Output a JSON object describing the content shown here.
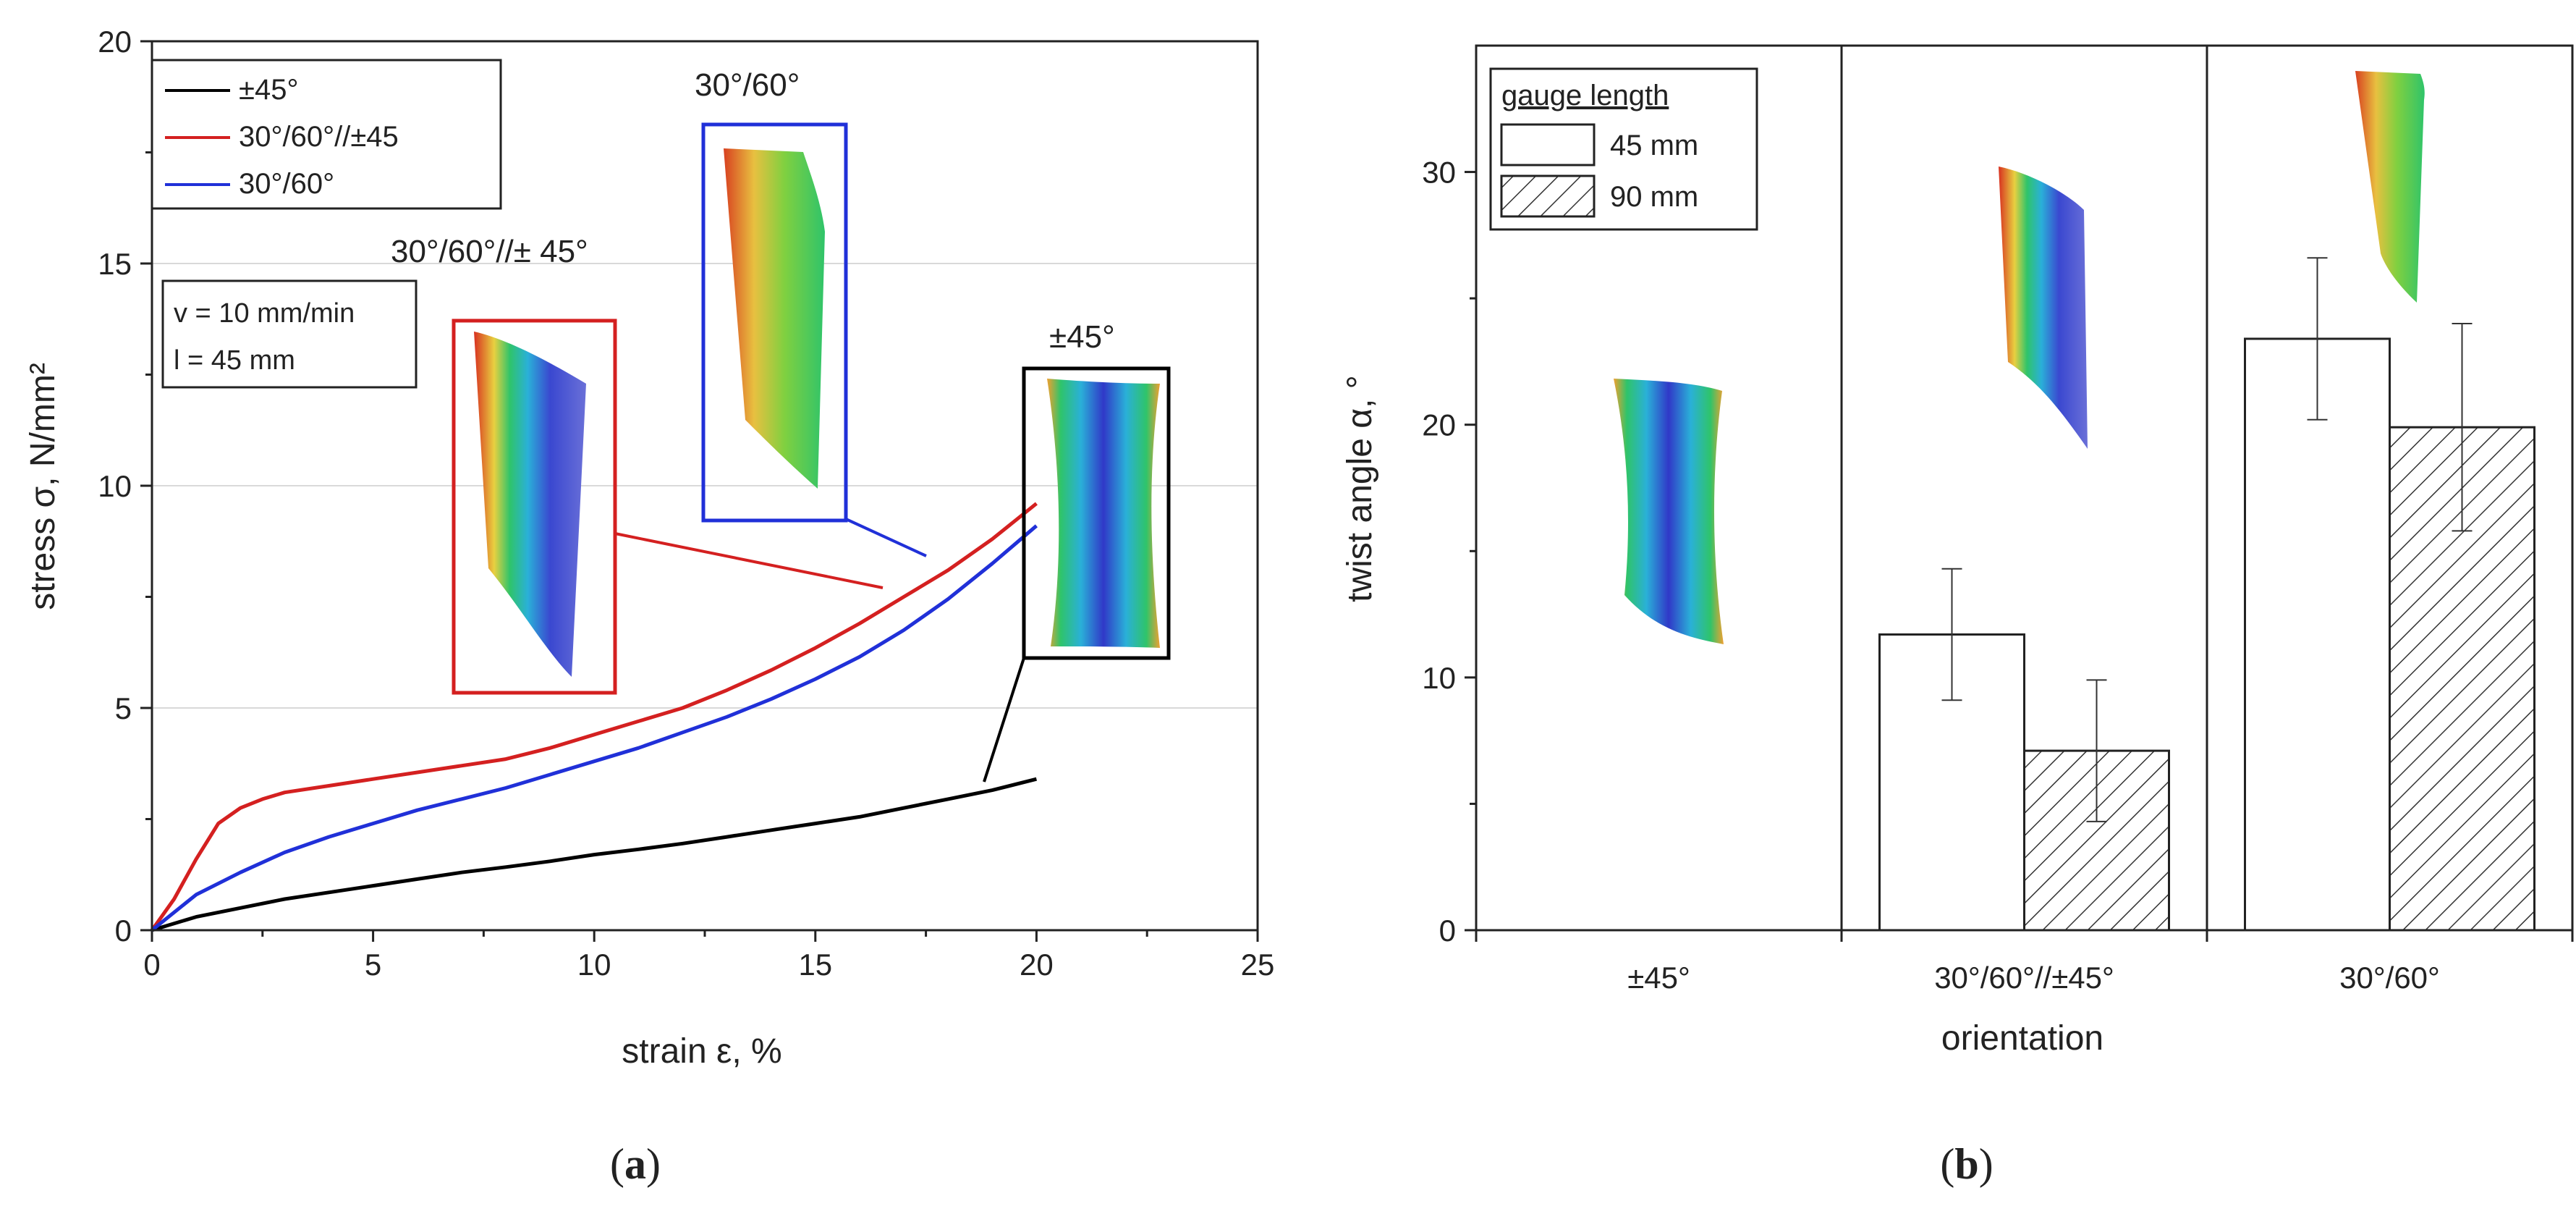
{
  "colors": {
    "black": "#000000",
    "red": "#d42020",
    "blue": "#2030d8",
    "grid": "#d9d9d9",
    "axis": "#222222",
    "frame": "#222222"
  },
  "panels": {
    "a": {
      "open": "(",
      "letter": "a",
      "close": ")"
    },
    "b": {
      "open": "(",
      "letter": "b",
      "close": ")"
    }
  },
  "chart_data": [
    {
      "id": "a",
      "type": "line",
      "title": "",
      "xlabel": "strain ε, %",
      "ylabel": "stress σ, N/mm²",
      "xlim": [
        0,
        25
      ],
      "ylim": [
        0,
        20
      ],
      "xticks": [
        0,
        5,
        10,
        15,
        20,
        25
      ],
      "yticks": [
        0,
        5,
        10,
        15,
        20
      ],
      "grid": "horizontal",
      "legend_position": "top-left",
      "series": [
        {
          "name": "±45°",
          "color": "#000000",
          "x": [
            0,
            1,
            2,
            3,
            4,
            5,
            6,
            7,
            8,
            9,
            10,
            11,
            12,
            13,
            14,
            15,
            16,
            17,
            18,
            19,
            20
          ],
          "y": [
            0,
            0.3,
            0.5,
            0.7,
            0.85,
            1.0,
            1.15,
            1.3,
            1.42,
            1.55,
            1.7,
            1.82,
            1.95,
            2.1,
            2.25,
            2.4,
            2.55,
            2.75,
            2.95,
            3.15,
            3.4
          ]
        },
        {
          "name": "30°/60°//±45",
          "color": "#d42020",
          "x": [
            0,
            0.5,
            1,
            1.5,
            2,
            2.5,
            3,
            4,
            5,
            6,
            7,
            8,
            9,
            10,
            11,
            12,
            13,
            14,
            15,
            16,
            17,
            18,
            19,
            20
          ],
          "y": [
            0,
            0.7,
            1.6,
            2.4,
            2.75,
            2.95,
            3.1,
            3.25,
            3.4,
            3.55,
            3.7,
            3.85,
            4.1,
            4.4,
            4.7,
            5.0,
            5.4,
            5.85,
            6.35,
            6.9,
            7.5,
            8.1,
            8.8,
            9.6
          ]
        },
        {
          "name": "30°/60°",
          "color": "#2030d8",
          "x": [
            0,
            1,
            2,
            3,
            4,
            5,
            6,
            7,
            8,
            9,
            10,
            11,
            12,
            13,
            14,
            15,
            16,
            17,
            18,
            19,
            20
          ],
          "y": [
            0,
            0.8,
            1.3,
            1.75,
            2.1,
            2.4,
            2.7,
            2.95,
            3.2,
            3.5,
            3.8,
            4.1,
            4.45,
            4.8,
            5.2,
            5.65,
            6.15,
            6.75,
            7.45,
            8.25,
            9.1
          ]
        }
      ],
      "note": {
        "speed": "v = 10 mm/min",
        "length": "l = 45 mm"
      },
      "annotations": [
        {
          "label": "30°/60°//± 45°",
          "color": "#d42020"
        },
        {
          "label": "30°/60°",
          "color": "#2030d8"
        },
        {
          "label": "±45°",
          "color": "#000000"
        }
      ]
    },
    {
      "id": "b",
      "type": "bar",
      "title": "",
      "xlabel": "orientation",
      "ylabel": "twist angle α, °",
      "ylim": [
        0,
        35
      ],
      "yticks": [
        0,
        10,
        20,
        30
      ],
      "grid": "none",
      "categories": [
        "±45°",
        "30°/60°//±45°",
        "30°/60°"
      ],
      "legend_title": "gauge length",
      "legend_position": "top-left",
      "series": [
        {
          "name": "45 mm",
          "pattern": "empty",
          "values": [
            null,
            11.7,
            23.4
          ],
          "errors": [
            null,
            2.6,
            3.2
          ]
        },
        {
          "name": "90 mm",
          "pattern": "hatched",
          "values": [
            null,
            7.1,
            19.9
          ],
          "errors": [
            null,
            2.8,
            4.1
          ]
        }
      ]
    }
  ]
}
